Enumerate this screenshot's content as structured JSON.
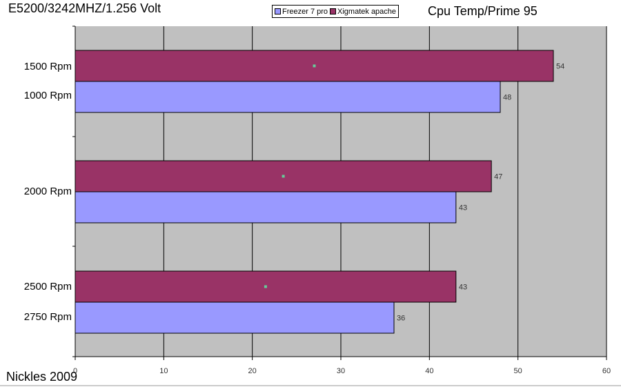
{
  "header": {
    "title_left": "E5200/3242MHZ/1.256 Volt",
    "title_right": "Cpu Temp/Prime 95"
  },
  "footer": {
    "text": "Nickles 2009"
  },
  "legend": {
    "items": [
      {
        "label": "Freezer 7 pro",
        "color": "#9999FF"
      },
      {
        "label": "Xigmatek apache",
        "color": "#993366"
      }
    ]
  },
  "chart_data": {
    "type": "bar",
    "orientation": "horizontal",
    "xlim": [
      0,
      60
    ],
    "x_ticks": [
      0,
      10,
      20,
      30,
      40,
      50,
      60
    ],
    "grid": true,
    "legend_position": "top-center",
    "plot_background": "#C0C0C0",
    "groups": [
      {
        "labels": [
          "1500 Rpm",
          "1000 Rpm"
        ],
        "xigmatek": {
          "label": "1500 Rpm",
          "value": 54
        },
        "freezer": {
          "label": "1000 Rpm",
          "value": 48
        }
      },
      {
        "labels": [
          "2000 Rpm"
        ],
        "xigmatek": {
          "label": "2000 Rpm",
          "value": 47
        },
        "freezer": {
          "label": "2000 Rpm",
          "value": 43
        }
      },
      {
        "labels": [
          "2500 Rpm",
          "2750 Rpm"
        ],
        "xigmatek": {
          "label": "2500 Rpm",
          "value": 43
        },
        "freezer": {
          "label": "2750 Rpm",
          "value": 36
        }
      }
    ],
    "series": [
      {
        "name": "Freezer 7 pro",
        "color": "#9999FF",
        "values": [
          48,
          43,
          36
        ]
      },
      {
        "name": "Xigmatek apache",
        "color": "#993366",
        "values": [
          54,
          47,
          43
        ]
      }
    ],
    "category_labels": [
      "1500 Rpm",
      "1000 Rpm",
      "2000 Rpm",
      "2500 Rpm",
      "2750 Rpm"
    ]
  }
}
